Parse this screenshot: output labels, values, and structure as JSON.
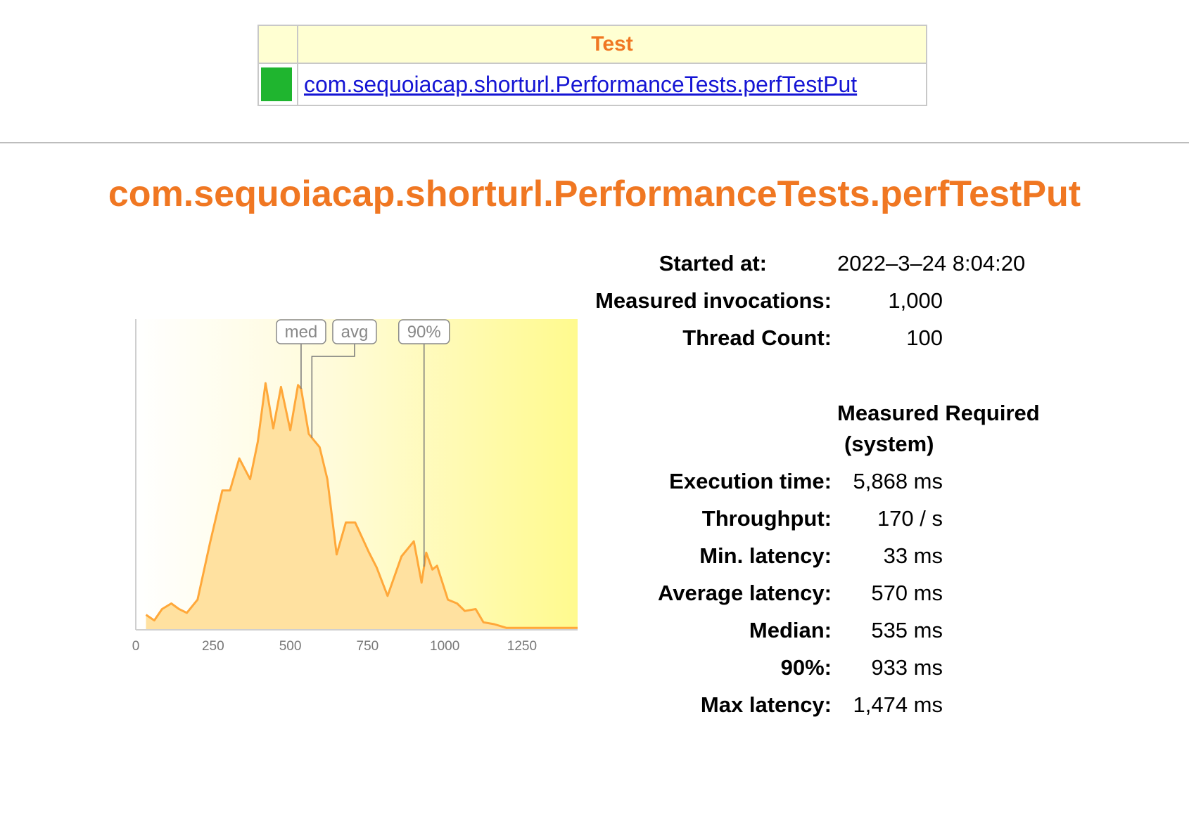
{
  "summary_table": {
    "header_test": "Test",
    "rows": [
      {
        "status_color": "#1fb52f",
        "test_name": "com.sequoiacap.shorturl.PerformanceTests.perfTestPut"
      }
    ]
  },
  "title": "com.sequoiacap.shorturl.PerformanceTests.perfTestPut",
  "stats": {
    "started_label": "Started at:",
    "started_value": "2022–3–24 8:04:20",
    "invocations_label": "Measured invocations:",
    "invocations_value": "1,000",
    "threads_label": "Thread Count:",
    "threads_value": "100",
    "col_measured": "Measured",
    "col_required": "Required",
    "col_system": "(system)",
    "exec_label": "Execution time:",
    "exec_value": "5,868 ms",
    "throughput_label": "Throughput:",
    "throughput_value": "170 / s",
    "min_label": "Min. latency:",
    "min_value": "33 ms",
    "avg_label": "Average latency:",
    "avg_value": "570 ms",
    "median_label": "Median:",
    "median_value": "535 ms",
    "p90_label": "90%:",
    "p90_value": "933 ms",
    "max_label": "Max latency:",
    "max_value": "1,474 ms"
  },
  "colors": {
    "accent": "#f07722",
    "link": "#1515d4",
    "pass": "#1fb52f",
    "area_fill": "#ffe1a0",
    "area_line": "#ffa83a"
  },
  "chart_data": {
    "type": "area",
    "x_ticks": [
      "0",
      "250",
      "500",
      "750",
      "1000",
      "1250"
    ],
    "xlim": [
      0,
      1430
    ],
    "ylim": [
      0,
      165
    ],
    "markers": [
      {
        "label": "med",
        "value": 535
      },
      {
        "label": "avg",
        "value": 570
      },
      {
        "label": "90%",
        "value": 933
      }
    ],
    "x": [
      33,
      60,
      85,
      115,
      140,
      165,
      200,
      240,
      280,
      305,
      335,
      370,
      395,
      420,
      445,
      470,
      500,
      525,
      535,
      560,
      595,
      620,
      650,
      680,
      710,
      755,
      780,
      815,
      860,
      900,
      925,
      940,
      960,
      975,
      1010,
      1040,
      1065,
      1100,
      1125,
      1160,
      1200,
      1280,
      1350,
      1430
    ],
    "y": [
      8,
      5,
      11,
      14,
      11,
      9,
      16,
      46,
      74,
      74,
      91,
      80,
      100,
      131,
      107,
      129,
      106,
      130,
      128,
      104,
      97,
      80,
      40,
      57,
      57,
      41,
      33,
      18,
      39,
      47,
      25,
      41,
      32,
      34,
      16,
      14,
      10,
      11,
      4,
      3,
      1,
      1,
      1,
      1
    ]
  }
}
